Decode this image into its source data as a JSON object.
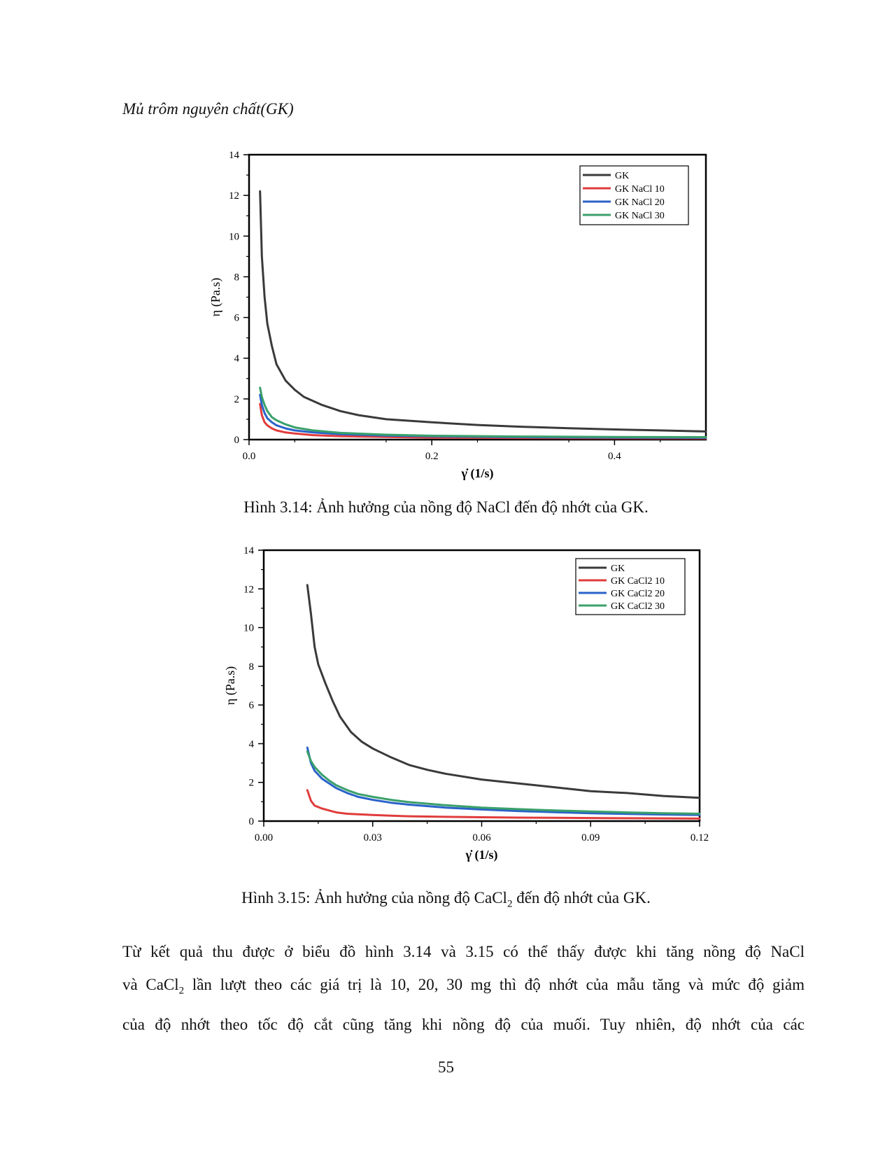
{
  "section_heading": "Mủ trôm nguyên chất(GK)",
  "figure_1": {
    "caption": "Hình 3.14: Ảnh hưởng của nồng độ NaCl đến độ nhớt của GK."
  },
  "figure_2": {
    "caption_before_sub": "Hình 3.15: Ảnh hưởng của nồng độ CaCl",
    "caption_sub": "2",
    "caption_after_sub": " đến độ nhớt của GK."
  },
  "body": {
    "line1": "Từ kết quả thu được ở biểu đồ hình 3.14 và 3.15 có thể thấy được khi tăng nồng độ NaCl",
    "line2_before_sub": "và CaCl",
    "line2_sub": "2",
    "line2_after_sub": " lần lượt theo các giá trị là 10, 20, 30 mg thì độ nhớt của mẫu tăng và mức độ giảm",
    "line3": "của độ nhớt theo tốc độ cắt cũng tăng khi nồng độ của muối. Tuy nhiên, độ nhớt của các"
  },
  "page_number": "55",
  "chart_data": [
    {
      "type": "line",
      "title": "",
      "xlabel": "γ̇ (1/s)",
      "ylabel": "η (Pa.s)",
      "xlim": [
        0,
        0.5
      ],
      "ylim": [
        0,
        14
      ],
      "x_ticks": [
        "0.0",
        "0.2",
        "0.4"
      ],
      "x_tick_values": [
        0,
        0.2,
        0.4
      ],
      "y_ticks": [
        "0",
        "2",
        "4",
        "6",
        "8",
        "10",
        "12",
        "14"
      ],
      "y_tick_values": [
        0,
        2,
        4,
        6,
        8,
        10,
        12,
        14
      ],
      "legend_position": "top-right",
      "series": [
        {
          "name": "GK",
          "color": "#3a3a3a",
          "x": [
            0.012,
            0.014,
            0.017,
            0.02,
            0.025,
            0.03,
            0.04,
            0.05,
            0.06,
            0.08,
            0.1,
            0.12,
            0.15,
            0.2,
            0.25,
            0.3,
            0.35,
            0.4,
            0.45,
            0.5
          ],
          "y": [
            12.2,
            9.0,
            7.0,
            5.7,
            4.6,
            3.7,
            2.9,
            2.45,
            2.1,
            1.7,
            1.4,
            1.2,
            1.0,
            0.85,
            0.72,
            0.63,
            0.56,
            0.5,
            0.45,
            0.4
          ]
        },
        {
          "name": "GK NaCl 10",
          "color": "#e03c3c",
          "x": [
            0.012,
            0.014,
            0.017,
            0.02,
            0.025,
            0.03,
            0.04,
            0.05,
            0.07,
            0.1,
            0.15,
            0.2,
            0.3,
            0.4,
            0.5
          ],
          "y": [
            1.75,
            1.2,
            0.85,
            0.7,
            0.55,
            0.45,
            0.35,
            0.3,
            0.22,
            0.17,
            0.13,
            0.1,
            0.08,
            0.07,
            0.06
          ]
        },
        {
          "name": "GK NaCl 20",
          "color": "#2a63c9",
          "x": [
            0.012,
            0.014,
            0.017,
            0.02,
            0.025,
            0.03,
            0.04,
            0.05,
            0.07,
            0.1,
            0.15,
            0.2,
            0.3,
            0.4,
            0.5
          ],
          "y": [
            2.2,
            1.7,
            1.3,
            1.05,
            0.85,
            0.7,
            0.55,
            0.45,
            0.35,
            0.27,
            0.2,
            0.16,
            0.12,
            0.1,
            0.09
          ]
        },
        {
          "name": "GK NaCl 30",
          "color": "#3aa06a",
          "x": [
            0.012,
            0.014,
            0.017,
            0.02,
            0.025,
            0.03,
            0.04,
            0.05,
            0.07,
            0.1,
            0.15,
            0.2,
            0.3,
            0.4,
            0.5
          ],
          "y": [
            2.55,
            2.1,
            1.7,
            1.4,
            1.1,
            0.95,
            0.75,
            0.6,
            0.45,
            0.33,
            0.24,
            0.19,
            0.15,
            0.13,
            0.12
          ]
        }
      ]
    },
    {
      "type": "line",
      "title": "",
      "xlabel": "γ̇ (1/s)",
      "ylabel": "η (Pa.s)",
      "xlim": [
        0,
        0.12
      ],
      "ylim": [
        0,
        14
      ],
      "x_ticks": [
        "0.00",
        "0.03",
        "0.06",
        "0.09",
        "0.12"
      ],
      "x_tick_values": [
        0,
        0.03,
        0.06,
        0.09,
        0.12
      ],
      "y_ticks": [
        "0",
        "2",
        "4",
        "6",
        "8",
        "10",
        "12",
        "14"
      ],
      "y_tick_values": [
        0,
        2,
        4,
        6,
        8,
        10,
        12,
        14
      ],
      "legend_position": "top-right",
      "series": [
        {
          "name": "GK",
          "color": "#3a3a3a",
          "x": [
            0.012,
            0.013,
            0.014,
            0.015,
            0.017,
            0.019,
            0.021,
            0.024,
            0.027,
            0.03,
            0.035,
            0.04,
            0.045,
            0.05,
            0.06,
            0.07,
            0.08,
            0.09,
            0.1,
            0.11,
            0.12
          ],
          "y": [
            12.2,
            10.7,
            9.0,
            8.1,
            7.1,
            6.2,
            5.4,
            4.6,
            4.1,
            3.75,
            3.3,
            2.9,
            2.65,
            2.45,
            2.15,
            1.95,
            1.75,
            1.55,
            1.45,
            1.3,
            1.2
          ]
        },
        {
          "name": "GK CaCl2 10",
          "color": "#e03c3c",
          "x": [
            0.012,
            0.013,
            0.014,
            0.016,
            0.018,
            0.02,
            0.023,
            0.026,
            0.03,
            0.035,
            0.04,
            0.05,
            0.06,
            0.07,
            0.08,
            0.09,
            0.1,
            0.11,
            0.12
          ],
          "y": [
            1.6,
            1.05,
            0.8,
            0.65,
            0.55,
            0.45,
            0.38,
            0.35,
            0.32,
            0.28,
            0.25,
            0.22,
            0.2,
            0.18,
            0.17,
            0.16,
            0.15,
            0.14,
            0.13
          ]
        },
        {
          "name": "GK CaCl2 20",
          "color": "#2a63c9",
          "x": [
            0.012,
            0.013,
            0.014,
            0.016,
            0.018,
            0.02,
            0.023,
            0.026,
            0.03,
            0.035,
            0.04,
            0.05,
            0.06,
            0.07,
            0.08,
            0.09,
            0.1,
            0.11,
            0.12
          ],
          "y": [
            3.8,
            3.0,
            2.6,
            2.2,
            1.95,
            1.7,
            1.45,
            1.25,
            1.1,
            0.95,
            0.85,
            0.7,
            0.6,
            0.52,
            0.46,
            0.41,
            0.37,
            0.34,
            0.32
          ]
        },
        {
          "name": "GK CaCl2 30",
          "color": "#3aa06a",
          "x": [
            0.012,
            0.013,
            0.014,
            0.016,
            0.018,
            0.02,
            0.023,
            0.026,
            0.03,
            0.035,
            0.04,
            0.05,
            0.06,
            0.07,
            0.08,
            0.09,
            0.1,
            0.11,
            0.12
          ],
          "y": [
            3.6,
            3.1,
            2.8,
            2.4,
            2.1,
            1.85,
            1.6,
            1.4,
            1.25,
            1.1,
            0.98,
            0.82,
            0.7,
            0.62,
            0.55,
            0.5,
            0.45,
            0.41,
            0.38
          ]
        }
      ]
    }
  ]
}
